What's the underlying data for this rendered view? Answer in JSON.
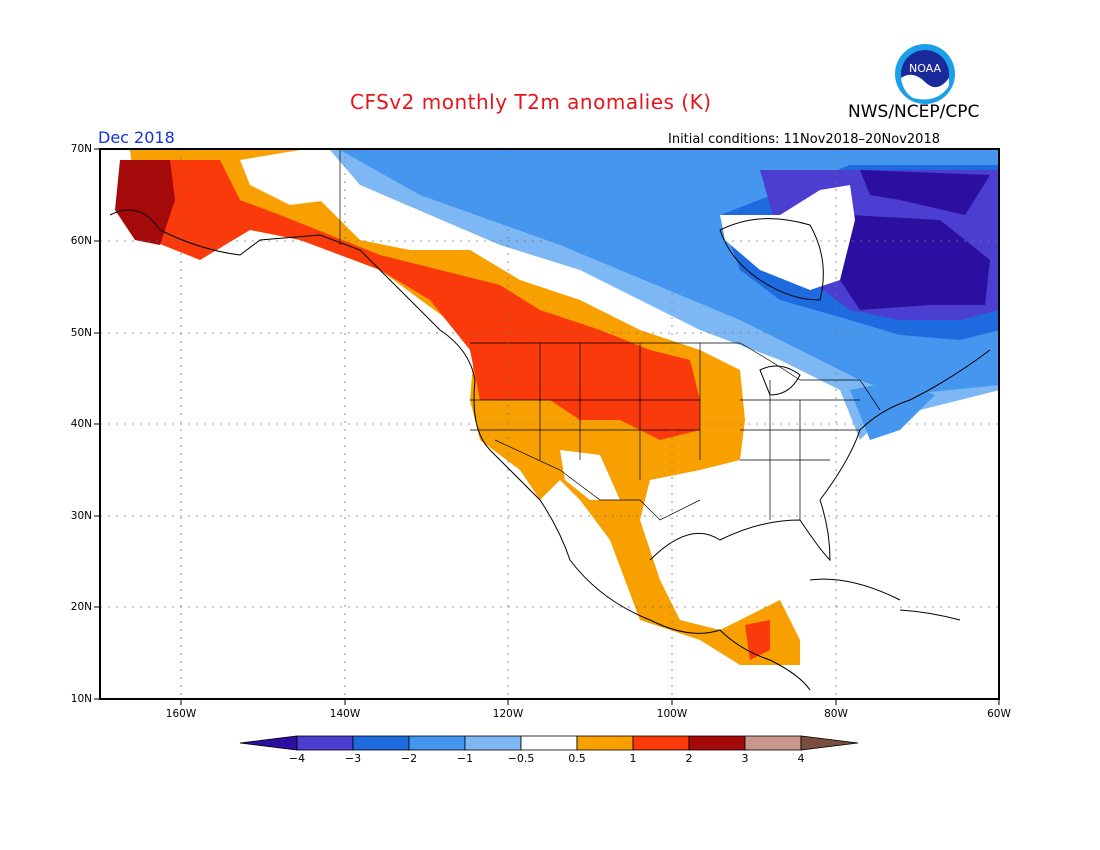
{
  "title": "CFSv2 monthly T2m anomalies (K)",
  "agency": "NWS/NCEP/CPC",
  "logo_text": "NOAA",
  "valid_month": "Dec 2018",
  "initial_conditions": "Initial conditions: 11Nov2018–20Nov2018",
  "lat_labels": [
    "70N",
    "60N",
    "50N",
    "40N",
    "30N",
    "20N",
    "10N"
  ],
  "lon_labels": [
    "160W",
    "140W",
    "120W",
    "100W",
    "80W",
    "60W"
  ],
  "colorbar": {
    "labels": [
      "−4",
      "−3",
      "−2",
      "−1",
      "−0.5",
      "0.5",
      "1",
      "2",
      "3",
      "4"
    ],
    "colors": [
      "#2a0fa0",
      "#4b3ed0",
      "#1e6be0",
      "#4496ee",
      "#7eb8f4",
      "#ffffff",
      "#f7a000",
      "#fa3a0a",
      "#a50a0a",
      "#c7988a",
      "#7a4e3e"
    ]
  },
  "legend_colors": {
    "strong_cold": "#2a0fa0",
    "cold": "#4b3ed0",
    "cool": "#1e6be0",
    "light_cool": "#4496ee",
    "pale_cool": "#7eb8f4",
    "warm": "#f7a000",
    "hot": "#fa3a0a",
    "very_hot": "#a50a0a"
  }
}
